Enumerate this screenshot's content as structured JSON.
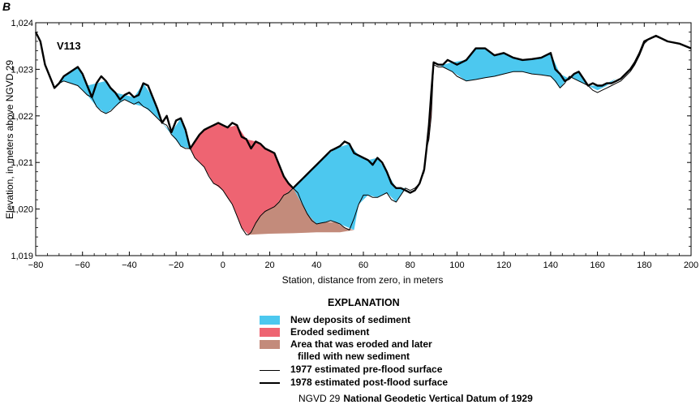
{
  "panel_letter": "B",
  "colors": {
    "deposit": "#4cc8ef",
    "eroded": "#ee6472",
    "refilled": "#c38b7b",
    "line": "#000000"
  },
  "chart_data": {
    "type": "area",
    "site_label": "V113",
    "xlabel": "Station, distance from zero, in meters",
    "ylabel": "Elevation, in meters above NGVD 29",
    "xlim": [
      -80,
      200
    ],
    "ylim": [
      1019,
      1024
    ],
    "x_ticks": [
      -80,
      -60,
      -40,
      -20,
      0,
      20,
      40,
      60,
      80,
      100,
      120,
      140,
      160,
      180,
      200
    ],
    "x_tick_labels": [
      "−80",
      "−60",
      "−40",
      "−20",
      "0",
      "20",
      "40",
      "60",
      "80",
      "100",
      "120",
      "140",
      "160",
      "180",
      "200"
    ],
    "y_ticks": [
      1019,
      1020,
      1021,
      1022,
      1023,
      1024
    ],
    "y_tick_labels": [
      "1,019",
      "1,020",
      "1,021",
      "1,022",
      "1,023",
      "1,024"
    ],
    "series": [
      {
        "name": "1977 estimated pre-flood surface",
        "x": [
          -80,
          -78,
          -76,
          -74,
          -72,
          -70,
          -68,
          -65,
          -62,
          -60,
          -58,
          -56,
          -54,
          -52,
          -50,
          -48,
          -46,
          -44,
          -42,
          -40,
          -38,
          -36,
          -34,
          -32,
          -30,
          -28,
          -26,
          -24,
          -22,
          -20,
          -18,
          -16,
          -14,
          -12,
          -10,
          -8,
          -6,
          -4,
          -2,
          0,
          2,
          4,
          6,
          8,
          10,
          11,
          12,
          14,
          16,
          18,
          20,
          22,
          24,
          26,
          28,
          30,
          32,
          34,
          36,
          38,
          40,
          42,
          44,
          46,
          48,
          50,
          52,
          54,
          56,
          58,
          60,
          62,
          64,
          66,
          68,
          70,
          72,
          74,
          76,
          78,
          80,
          82,
          84,
          86,
          87,
          88,
          89,
          90,
          92,
          94,
          96,
          98,
          100,
          104,
          108,
          112,
          116,
          120,
          124,
          128,
          132,
          136,
          140,
          142,
          144,
          146,
          148,
          150,
          152,
          154,
          156,
          158,
          160,
          162,
          164,
          166,
          168,
          170,
          172,
          174,
          176,
          178,
          180,
          182,
          185,
          190,
          195,
          200
        ],
        "y": [
          1023.8,
          1023.6,
          1023.1,
          1022.85,
          1022.6,
          1022.7,
          1022.75,
          1022.7,
          1022.65,
          1022.55,
          1022.45,
          1022.4,
          1022.2,
          1022.1,
          1022.05,
          1022.1,
          1022.2,
          1022.3,
          1022.35,
          1022.3,
          1022.25,
          1022.3,
          1022.2,
          1022.15,
          1022.05,
          1021.95,
          1021.85,
          1021.8,
          1021.6,
          1021.5,
          1021.35,
          1021.3,
          1021.3,
          1021.1,
          1021.0,
          1020.9,
          1020.7,
          1020.55,
          1020.5,
          1020.4,
          1020.25,
          1020.1,
          1019.85,
          1019.6,
          1019.45,
          1019.45,
          1019.5,
          1019.7,
          1019.85,
          1019.95,
          1020.0,
          1020.05,
          1020.15,
          1020.3,
          1020.35,
          1020.45,
          1020.35,
          1020.1,
          1019.9,
          1019.75,
          1019.68,
          1019.7,
          1019.72,
          1019.75,
          1019.72,
          1019.68,
          1019.6,
          1019.55,
          1019.8,
          1020.1,
          1020.3,
          1020.3,
          1020.25,
          1020.25,
          1020.3,
          1020.35,
          1020.2,
          1020.15,
          1020.3,
          1020.45,
          1020.4,
          1020.45,
          1020.55,
          1020.8,
          1021.3,
          1021.5,
          1022.0,
          1023.1,
          1023.05,
          1023.05,
          1023.0,
          1022.95,
          1022.85,
          1022.75,
          1022.78,
          1022.82,
          1022.85,
          1022.9,
          1022.95,
          1022.95,
          1022.9,
          1022.88,
          1022.85,
          1022.75,
          1022.6,
          1022.7,
          1022.85,
          1022.8,
          1022.75,
          1022.7,
          1022.65,
          1022.55,
          1022.5,
          1022.55,
          1022.6,
          1022.65,
          1022.7,
          1022.75,
          1022.85,
          1022.95,
          1023.1,
          1023.3,
          1023.55,
          1023.65,
          1023.7,
          1023.6,
          1023.55,
          1023.45
        ]
      },
      {
        "name": "1978 estimated post-flood surface",
        "x": [
          -80,
          -78,
          -76,
          -74,
          -72,
          -70,
          -68,
          -65,
          -62,
          -60,
          -58,
          -56,
          -54,
          -52,
          -50,
          -48,
          -46,
          -44,
          -42,
          -40,
          -38,
          -36,
          -34,
          -32,
          -30,
          -28,
          -26,
          -24,
          -22,
          -20,
          -18,
          -16,
          -14,
          -12,
          -10,
          -8,
          -6,
          -4,
          -2,
          0,
          2,
          4,
          6,
          8,
          10,
          11,
          12,
          14,
          16,
          18,
          20,
          22,
          24,
          26,
          28,
          30,
          32,
          34,
          36,
          38,
          40,
          42,
          44,
          46,
          48,
          50,
          52,
          54,
          56,
          58,
          60,
          62,
          64,
          66,
          68,
          70,
          72,
          74,
          76,
          78,
          80,
          82,
          84,
          86,
          87,
          88,
          89,
          90,
          92,
          94,
          96,
          98,
          100,
          104,
          108,
          112,
          116,
          120,
          124,
          128,
          132,
          136,
          140,
          142,
          144,
          146,
          148,
          150,
          152,
          154,
          156,
          158,
          160,
          162,
          164,
          166,
          168,
          170,
          172,
          174,
          176,
          178,
          180,
          182,
          185,
          190,
          195,
          200
        ],
        "y": [
          1023.8,
          1023.6,
          1023.1,
          1022.85,
          1022.6,
          1022.7,
          1022.85,
          1022.95,
          1023.05,
          1022.9,
          1022.65,
          1022.4,
          1022.7,
          1022.85,
          1022.75,
          1022.6,
          1022.5,
          1022.35,
          1022.45,
          1022.5,
          1022.4,
          1022.45,
          1022.7,
          1022.65,
          1022.4,
          1022.15,
          1021.85,
          1022.0,
          1021.65,
          1021.9,
          1021.95,
          1021.7,
          1021.3,
          1021.45,
          1021.6,
          1021.7,
          1021.75,
          1021.8,
          1021.85,
          1021.8,
          1021.75,
          1021.85,
          1021.8,
          1021.55,
          1021.5,
          1021.4,
          1021.3,
          1021.45,
          1021.4,
          1021.3,
          1021.25,
          1021.2,
          1020.95,
          1020.7,
          1020.55,
          1020.45,
          1020.55,
          1020.65,
          1020.75,
          1020.85,
          1020.95,
          1021.05,
          1021.15,
          1021.25,
          1021.3,
          1021.35,
          1021.45,
          1021.4,
          1021.2,
          1021.15,
          1021.1,
          1021.05,
          1020.95,
          1021.1,
          1021.0,
          1020.8,
          1020.55,
          1020.45,
          1020.45,
          1020.4,
          1020.35,
          1020.4,
          1020.55,
          1020.85,
          1021.3,
          1021.8,
          1022.5,
          1023.15,
          1023.1,
          1023.1,
          1023.2,
          1023.15,
          1023.1,
          1023.2,
          1023.45,
          1023.45,
          1023.3,
          1023.35,
          1023.25,
          1023.2,
          1023.22,
          1023.25,
          1023.35,
          1023.0,
          1022.9,
          1022.75,
          1022.8,
          1022.9,
          1022.95,
          1022.8,
          1022.65,
          1022.7,
          1022.65,
          1022.65,
          1022.7,
          1022.7,
          1022.75,
          1022.8,
          1022.9,
          1023.0,
          1023.15,
          1023.35,
          1023.6,
          1023.65,
          1023.72,
          1023.6,
          1023.55,
          1023.45
        ]
      }
    ],
    "areas": [
      {
        "name": "New deposits of sediment",
        "class": "deposit",
        "polygons": [
          {
            "x": [
              -72,
              -68,
              -62,
              -58,
              -54,
              -50,
              -46,
              -42,
              -38,
              -34,
              -30,
              -26,
              -22,
              -18,
              -14,
              -18,
              -22,
              -26,
              -30,
              -34,
              -38,
              -42,
              -46,
              -50,
              -54,
              -58,
              -62,
              -68
            ],
            "y": [
              1022.6,
              1022.85,
              1023.05,
              1022.65,
              1022.7,
              1022.75,
              1022.5,
              1022.45,
              1022.4,
              1022.7,
              1022.4,
              1021.85,
              1021.65,
              1021.95,
              1021.3,
              1021.35,
              1021.6,
              1021.85,
              1022.05,
              1022.2,
              1022.25,
              1022.35,
              1022.2,
              1022.05,
              1022.2,
              1022.45,
              1022.65,
              1022.75
            ]
          },
          {
            "x": [
              30,
              36,
              42,
              48,
              54,
              58,
              62,
              66,
              70,
              74,
              78,
              74,
              70,
              66,
              62,
              58,
              56,
              50,
              46,
              40,
              36
            ],
            "y": [
              1020.45,
              1020.75,
              1021.05,
              1021.3,
              1021.4,
              1021.15,
              1021.05,
              1021.1,
              1020.8,
              1020.45,
              1020.45,
              1020.15,
              1020.35,
              1020.25,
              1020.3,
              1020.1,
              1019.55,
              1019.68,
              1019.75,
              1019.68,
              1019.9
            ]
          },
          {
            "x": [
              90,
              94,
              98,
              104,
              108,
              112,
              116,
              120,
              124,
              128,
              132,
              136,
              140,
              144,
              148,
              152,
              156,
              160,
              164,
              168,
              164,
              160,
              156,
              152,
              148,
              144,
              140,
              136,
              132,
              128,
              124,
              120,
              116,
              112,
              108,
              104,
              98,
              94
            ],
            "y": [
              1023.15,
              1023.1,
              1023.15,
              1023.2,
              1023.45,
              1023.45,
              1023.3,
              1023.35,
              1023.25,
              1023.2,
              1023.22,
              1023.25,
              1023.35,
              1022.9,
              1022.8,
              1022.95,
              1022.65,
              1022.65,
              1022.7,
              1022.8,
              1022.65,
              1022.55,
              1022.65,
              1022.75,
              1022.85,
              1022.6,
              1022.85,
              1022.88,
              1022.9,
              1022.95,
              1022.95,
              1022.9,
              1022.85,
              1022.82,
              1022.78,
              1022.75,
              1022.95,
              1023.05
            ]
          }
        ]
      },
      {
        "name": "Eroded sediment",
        "class": "eroded",
        "polygons": [
          {
            "x": [
              -14,
              -10,
              -6,
              -2,
              2,
              6,
              10,
              14,
              18,
              22,
              26,
              30,
              26,
              22,
              18,
              14,
              11,
              8,
              4,
              0,
              -4,
              -8,
              -12
            ],
            "y": [
              1021.3,
              1021.6,
              1021.75,
              1021.85,
              1021.75,
              1021.8,
              1021.5,
              1021.45,
              1021.3,
              1021.2,
              1020.7,
              1020.45,
              1020.3,
              1020.05,
              1019.95,
              1019.7,
              1019.45,
              1019.6,
              1020.1,
              1020.4,
              1020.55,
              1020.9,
              1021.1
            ]
          },
          {
            "x": [
              80,
              84,
              86,
              87,
              88,
              89,
              90,
              89,
              88,
              87,
              86,
              84,
              82
            ],
            "y": [
              1020.35,
              1020.55,
              1020.85,
              1021.3,
              1021.8,
              1022.5,
              1023.15,
              1022.0,
              1021.5,
              1021.3,
              1020.8,
              1020.55,
              1020.45
            ]
          }
        ]
      },
      {
        "name": "Area that was eroded and later filled with new sediment",
        "class": "refilled",
        "polygons": [
          {
            "x": [
              11,
              14,
              18,
              22,
              26,
              30,
              36,
              40,
              44,
              48,
              52,
              56,
              50,
              40,
              30,
              20,
              11
            ],
            "y": [
              1019.45,
              1019.7,
              1019.95,
              1020.05,
              1020.3,
              1020.45,
              1019.9,
              1019.68,
              1019.72,
              1019.72,
              1019.6,
              1019.55,
              1019.5,
              1019.5,
              1019.48,
              1019.47,
              1019.45
            ]
          }
        ]
      }
    ]
  },
  "explanation": {
    "title": "EXPLANATION",
    "items": [
      {
        "label": "New deposits of sediment",
        "kind": "swatch",
        "class": "deposit"
      },
      {
        "label": "Eroded sediment",
        "kind": "swatch",
        "class": "eroded"
      },
      {
        "label": "Area that was eroded and later",
        "label2": "filled with new sediment",
        "kind": "swatch",
        "class": "refilled"
      },
      {
        "label": "1977 estimated pre-flood surface",
        "kind": "line",
        "weight": "thin"
      },
      {
        "label": "1978 estimated post-flood surface",
        "kind": "line",
        "weight": "thick"
      }
    ],
    "abbr_term": "NGVD 29",
    "abbr_definition": "National Geodetic Vertical Datum of 1929"
  }
}
